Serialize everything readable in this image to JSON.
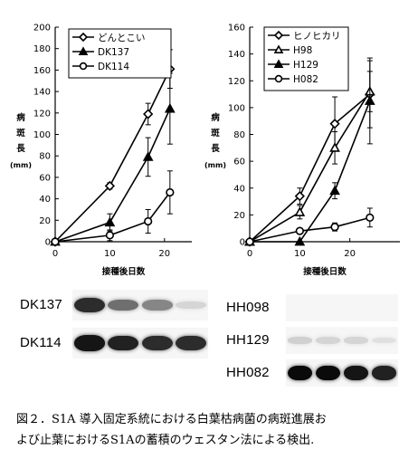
{
  "chart_data": [
    {
      "type": "line",
      "panel": "left",
      "xlabel": "接種後日数",
      "ylabel": "病斑長(mm)",
      "ylabel_chars": [
        "病",
        "斑",
        "長",
        "(mm)"
      ],
      "xlim": [
        0,
        25
      ],
      "ylim": [
        0,
        200
      ],
      "xticks": [
        0,
        10,
        20
      ],
      "yticks": [
        0,
        20,
        40,
        60,
        80,
        100,
        120,
        140,
        160,
        180,
        200
      ],
      "legend_placement": "top-left",
      "x": [
        0,
        10,
        17,
        21
      ],
      "series": [
        {
          "name": "どんとこい",
          "marker": "diamond-open",
          "values": [
            0,
            52,
            119,
            161
          ],
          "errors": [
            0,
            3,
            10,
            18
          ]
        },
        {
          "name": "DK137",
          "marker": "triangle-filled",
          "values": [
            0,
            18,
            79,
            124
          ],
          "errors": [
            0,
            8,
            18,
            33
          ]
        },
        {
          "name": "DK114",
          "marker": "circle-open",
          "values": [
            0,
            6,
            19,
            46
          ],
          "errors": [
            0,
            5,
            11,
            20
          ]
        }
      ]
    },
    {
      "type": "line",
      "panel": "right",
      "xlabel": "接種後日数",
      "ylabel": "病斑長(mm)",
      "ylabel_chars": [
        "病",
        "斑",
        "長",
        "(mm)"
      ],
      "xlim": [
        0,
        30
      ],
      "ylim": [
        0,
        160
      ],
      "xticks": [
        0,
        10,
        20
      ],
      "yticks": [
        0,
        20,
        40,
        60,
        80,
        100,
        120,
        140,
        160
      ],
      "legend_placement": "top-left",
      "x": [
        0,
        10,
        17,
        24
      ],
      "series": [
        {
          "name": "ヒノヒカリ",
          "marker": "diamond-open",
          "values": [
            0,
            34,
            88,
            110
          ],
          "errors": [
            0,
            6,
            20,
            25
          ]
        },
        {
          "name": "H98",
          "marker": "triangle-open",
          "values": [
            0,
            22,
            70,
            112
          ],
          "errors": [
            0,
            5,
            12,
            15
          ]
        },
        {
          "name": "H129",
          "marker": "triangle-filled",
          "values": [
            0,
            0,
            38,
            105
          ],
          "errors": [
            0,
            0,
            6,
            32
          ]
        },
        {
          "name": "H082",
          "marker": "circle-open",
          "values": [
            0,
            8,
            11,
            18
          ],
          "errors": [
            0,
            2,
            3,
            7
          ]
        }
      ]
    }
  ],
  "blots": {
    "left": [
      {
        "label": "DK137",
        "lanes": [
          0.85,
          0.55,
          0.45,
          0.1
        ]
      },
      {
        "label": "DK114",
        "lanes": [
          0.95,
          0.9,
          0.85,
          0.85
        ]
      }
    ],
    "right": [
      {
        "label": "HH098",
        "lanes": [
          0.0,
          0.0,
          0.0,
          0.0
        ]
      },
      {
        "label": "HH129",
        "lanes": [
          0.12,
          0.1,
          0.1,
          0.05
        ]
      },
      {
        "label": "HH082",
        "lanes": [
          1.0,
          1.0,
          0.95,
          0.9
        ]
      }
    ]
  },
  "caption": {
    "line1": "図２．S1A 導入固定系統における白葉枯病菌の病斑進展お",
    "line2": "よび止葉におけるS1Aの蓄積のウェスタン法による検出."
  }
}
